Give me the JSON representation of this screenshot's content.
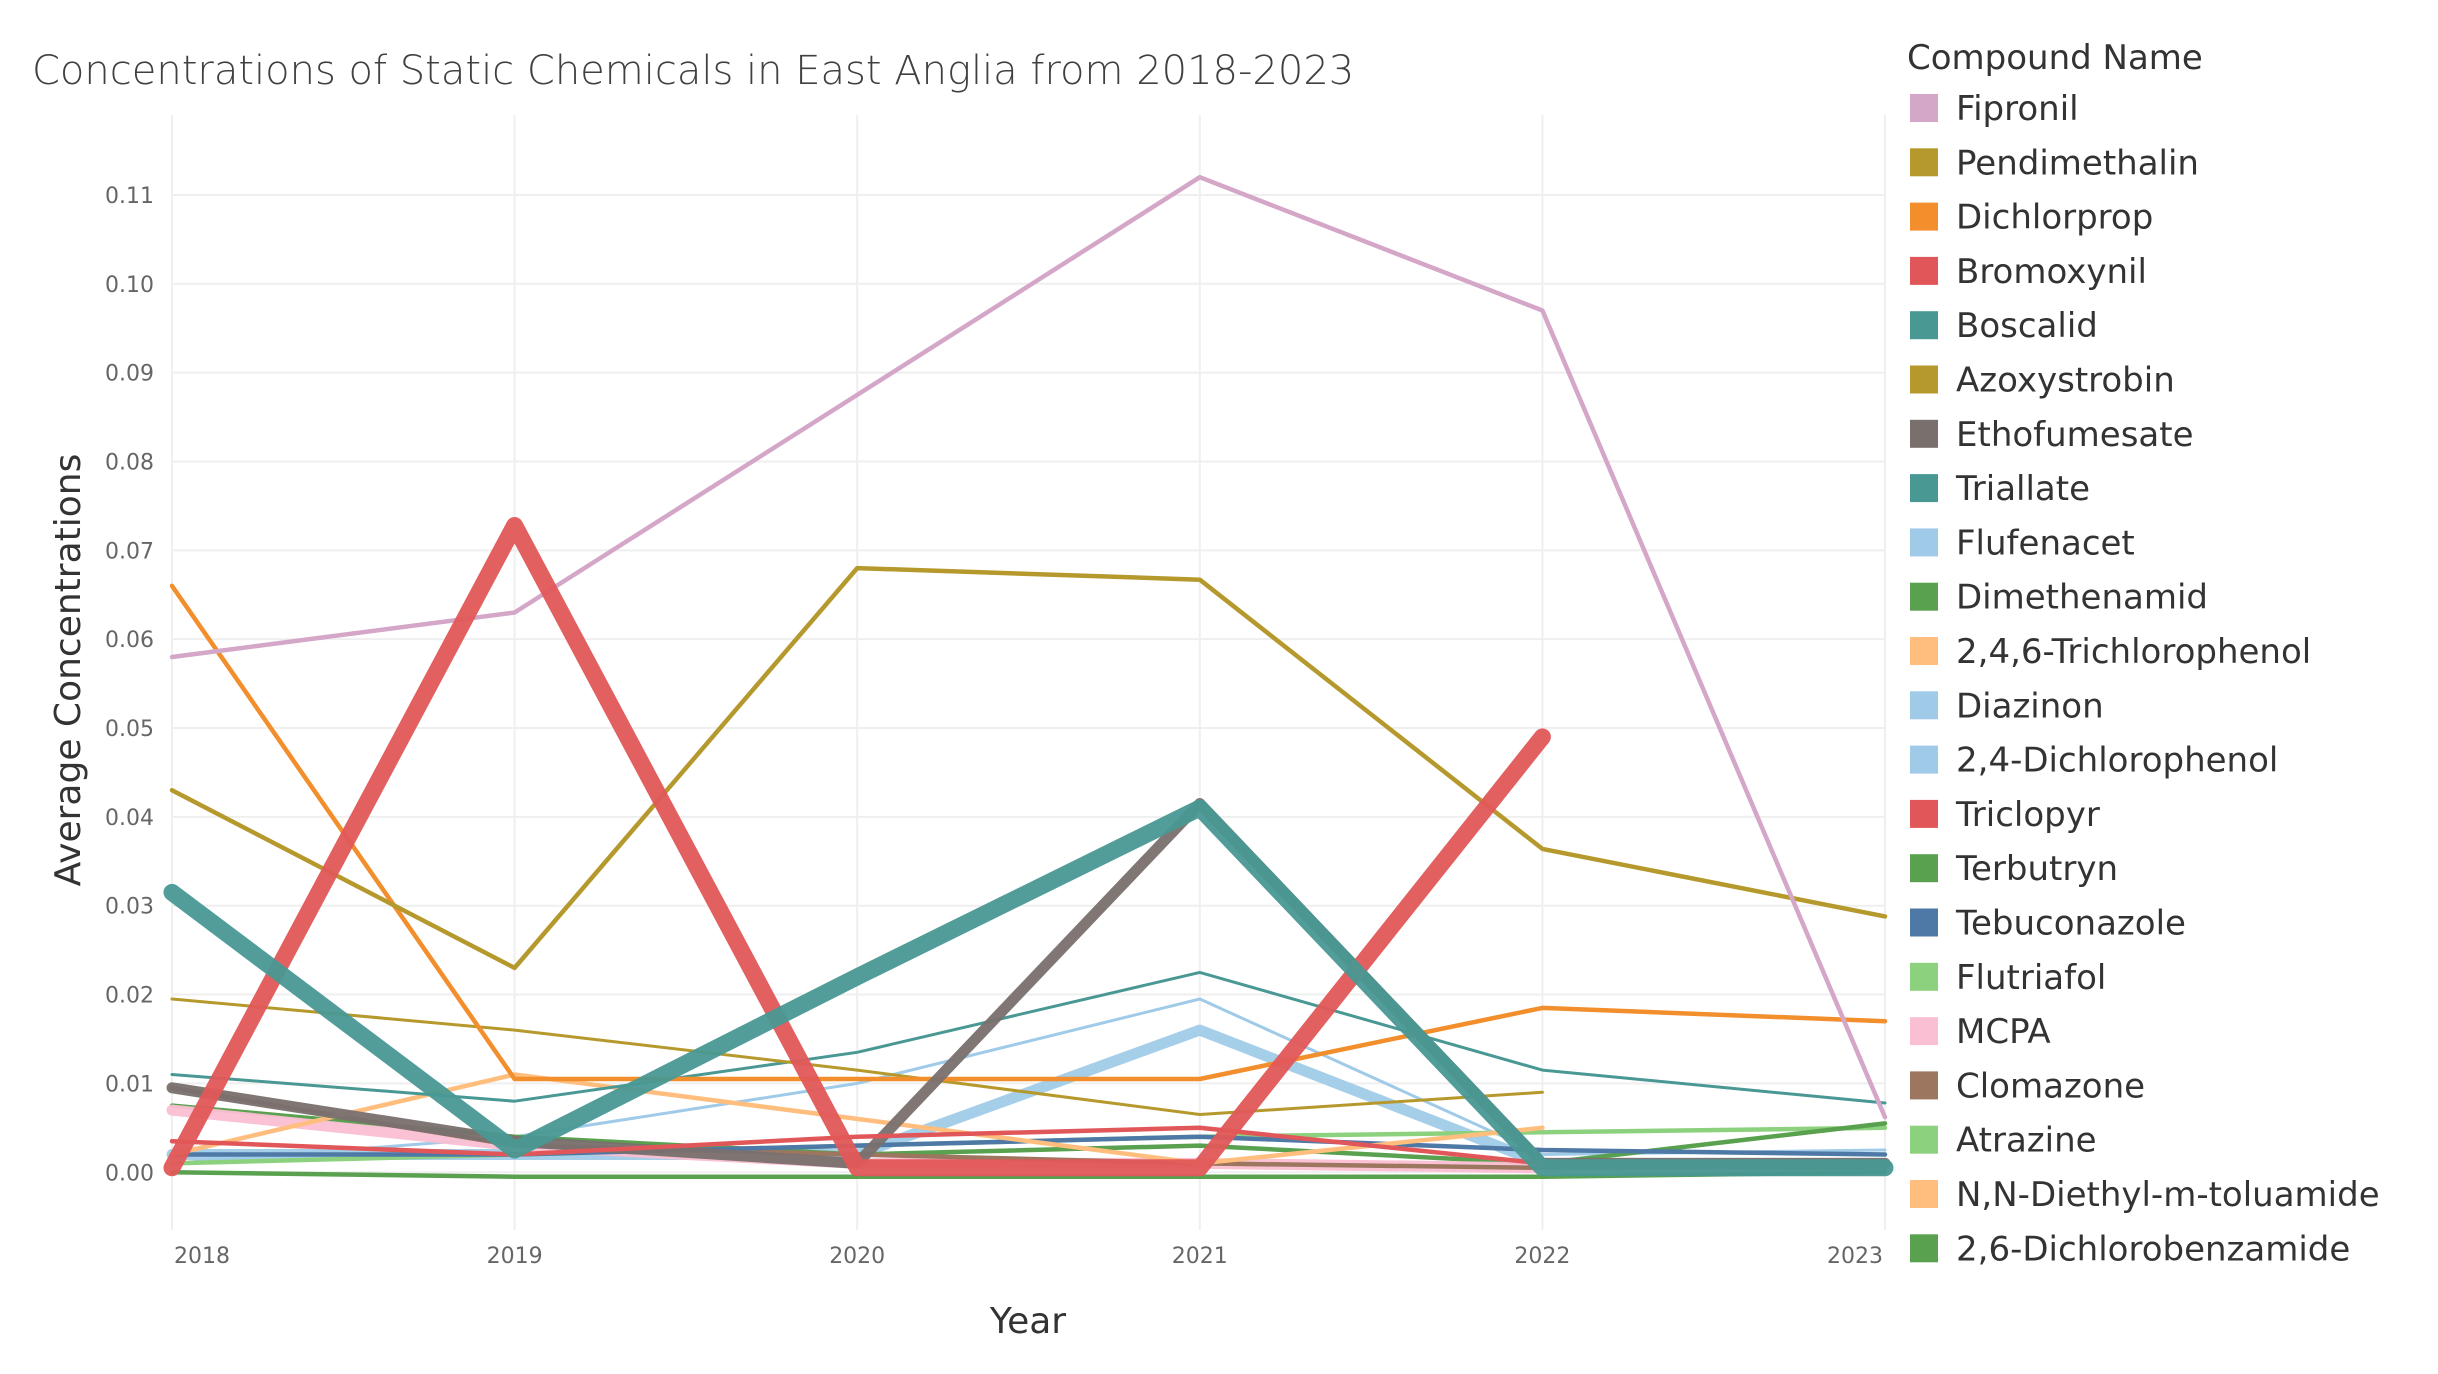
{
  "chart_data": {
    "type": "line",
    "title": "Concentrations of Static Chemicals in East Anglia from 2018-2023",
    "xlabel": "Year",
    "ylabel": "Average Concentrations",
    "x": [
      "2018",
      "2019",
      "2020",
      "2021",
      "2022",
      "2023"
    ],
    "ylim": [
      -0.0065,
      0.119
    ],
    "yticks": [
      "0.00",
      "0.01",
      "0.02",
      "0.03",
      "0.04",
      "0.05",
      "0.06",
      "0.07",
      "0.08",
      "0.09",
      "0.10",
      "0.11"
    ],
    "grid": true,
    "legend": {
      "title": "Compound Name",
      "placement": "right",
      "entries": [
        {
          "name": "Fipronil",
          "color": "#D4A6C8"
        },
        {
          "name": "Pendimethalin",
          "color": "#B6992D"
        },
        {
          "name": "Dichlorprop",
          "color": "#F28E2B"
        },
        {
          "name": "Bromoxynil",
          "color": "#E15759"
        },
        {
          "name": "Boscalid",
          "color": "#499894"
        },
        {
          "name": "Azoxystrobin",
          "color": "#B6992D"
        },
        {
          "name": "Ethofumesate",
          "color": "#79706E"
        },
        {
          "name": "Triallate",
          "color": "#499894"
        },
        {
          "name": "Flufenacet",
          "color": "#A0CBE8"
        },
        {
          "name": "Dimethenamid",
          "color": "#59A14F"
        },
        {
          "name": "2,4,6-Trichlorophenol",
          "color": "#FFBE7D"
        },
        {
          "name": "Diazinon",
          "color": "#A0CBE8"
        },
        {
          "name": "2,4-Dichlorophenol",
          "color": "#A0CBE8"
        },
        {
          "name": "Triclopyr",
          "color": "#E15759"
        },
        {
          "name": "Terbutryn",
          "color": "#59A14F"
        },
        {
          "name": "Tebuconazole",
          "color": "#4E79A7"
        },
        {
          "name": "Flutriafol",
          "color": "#8CD17D"
        },
        {
          "name": "MCPA",
          "color": "#FABFD2"
        },
        {
          "name": "Clomazone",
          "color": "#9D7660"
        },
        {
          "name": "Atrazine",
          "color": "#8CD17D"
        },
        {
          "name": "N,N-Diethyl-m-toluamide",
          "color": "#FFBE7D"
        },
        {
          "name": "2,6-Dichlorobenzamide",
          "color": "#59A14F"
        }
      ]
    },
    "series": [
      {
        "color": "#A0CBE8",
        "weight": "thin",
        "values": [
          0.001,
          0.004,
          0.01,
          0.0195,
          0.002,
          0.0025
        ]
      },
      {
        "color": "#A0CBE8",
        "weight": "thick",
        "values": [
          0.002,
          0.002,
          0.002,
          0.016,
          0.001,
          0.001
        ]
      },
      {
        "color": "#8CD17D",
        "weight": "medium",
        "values": [
          0.001,
          0.002,
          0.003,
          0.004,
          0.0045,
          0.005
        ]
      },
      {
        "color": "#59A14F",
        "weight": "medium",
        "values": [
          0.0075,
          0.004,
          0.002,
          0.003,
          0.001,
          0.0055
        ]
      },
      {
        "color": "#FABFD2",
        "weight": "thick",
        "values": [
          0.007,
          0.003,
          0.001,
          0.001,
          0.0005,
          0.0005
        ]
      },
      {
        "color": "#9D7660",
        "weight": "medium",
        "values": [
          0.0095,
          0.003,
          0.002,
          0.001,
          0.0005,
          0.0005
        ]
      },
      {
        "color": "#4E79A7",
        "weight": "medium",
        "values": [
          0.002,
          0.002,
          0.003,
          0.004,
          0.0025,
          0.002
        ]
      },
      {
        "color": "#FFBE7D",
        "weight": "medium",
        "values": [
          0.002,
          0.011,
          0.006,
          0.001,
          0.005,
          null
        ]
      },
      {
        "color": "#59A14F",
        "weight": "medium",
        "values": [
          0.0,
          -0.0005,
          -0.0005,
          -0.0005,
          -0.0005,
          0.0
        ]
      },
      {
        "color": "#499894",
        "weight": "thin",
        "values": [
          0.011,
          0.008,
          0.0135,
          0.0225,
          0.0115,
          0.0078
        ]
      },
      {
        "color": "#B6992D",
        "weight": "thin",
        "values": [
          0.0195,
          0.016,
          0.0115,
          0.0065,
          0.009,
          null
        ]
      },
      {
        "color": "#F28E2B",
        "weight": "medium",
        "values": [
          0.066,
          0.0105,
          0.0105,
          0.0105,
          0.0185,
          0.017
        ]
      },
      {
        "color": "#B6992D",
        "weight": "medium",
        "values": [
          0.043,
          0.023,
          0.068,
          0.0667,
          0.0364,
          0.0288
        ]
      },
      {
        "color": "#D4A6C8",
        "weight": "medium",
        "values": [
          0.058,
          0.063,
          0.0875,
          0.112,
          0.097,
          0.0062
        ]
      },
      {
        "color": "#79706E",
        "weight": "thick",
        "values": [
          0.0095,
          0.0035,
          0.001,
          0.0415,
          0.001,
          0.001
        ]
      },
      {
        "color": "#E15759",
        "weight": "medium",
        "values": [
          0.0035,
          0.002,
          0.004,
          0.005,
          0.001,
          null
        ]
      },
      {
        "color": "#E15759",
        "weight": "xthick",
        "values": [
          0.0005,
          0.0728,
          0.0005,
          0.0005,
          0.049,
          null
        ]
      },
      {
        "color": "#499894",
        "weight": "xthick",
        "values": [
          0.0315,
          0.0025,
          0.022,
          0.041,
          0.0005,
          0.0005
        ]
      }
    ]
  }
}
